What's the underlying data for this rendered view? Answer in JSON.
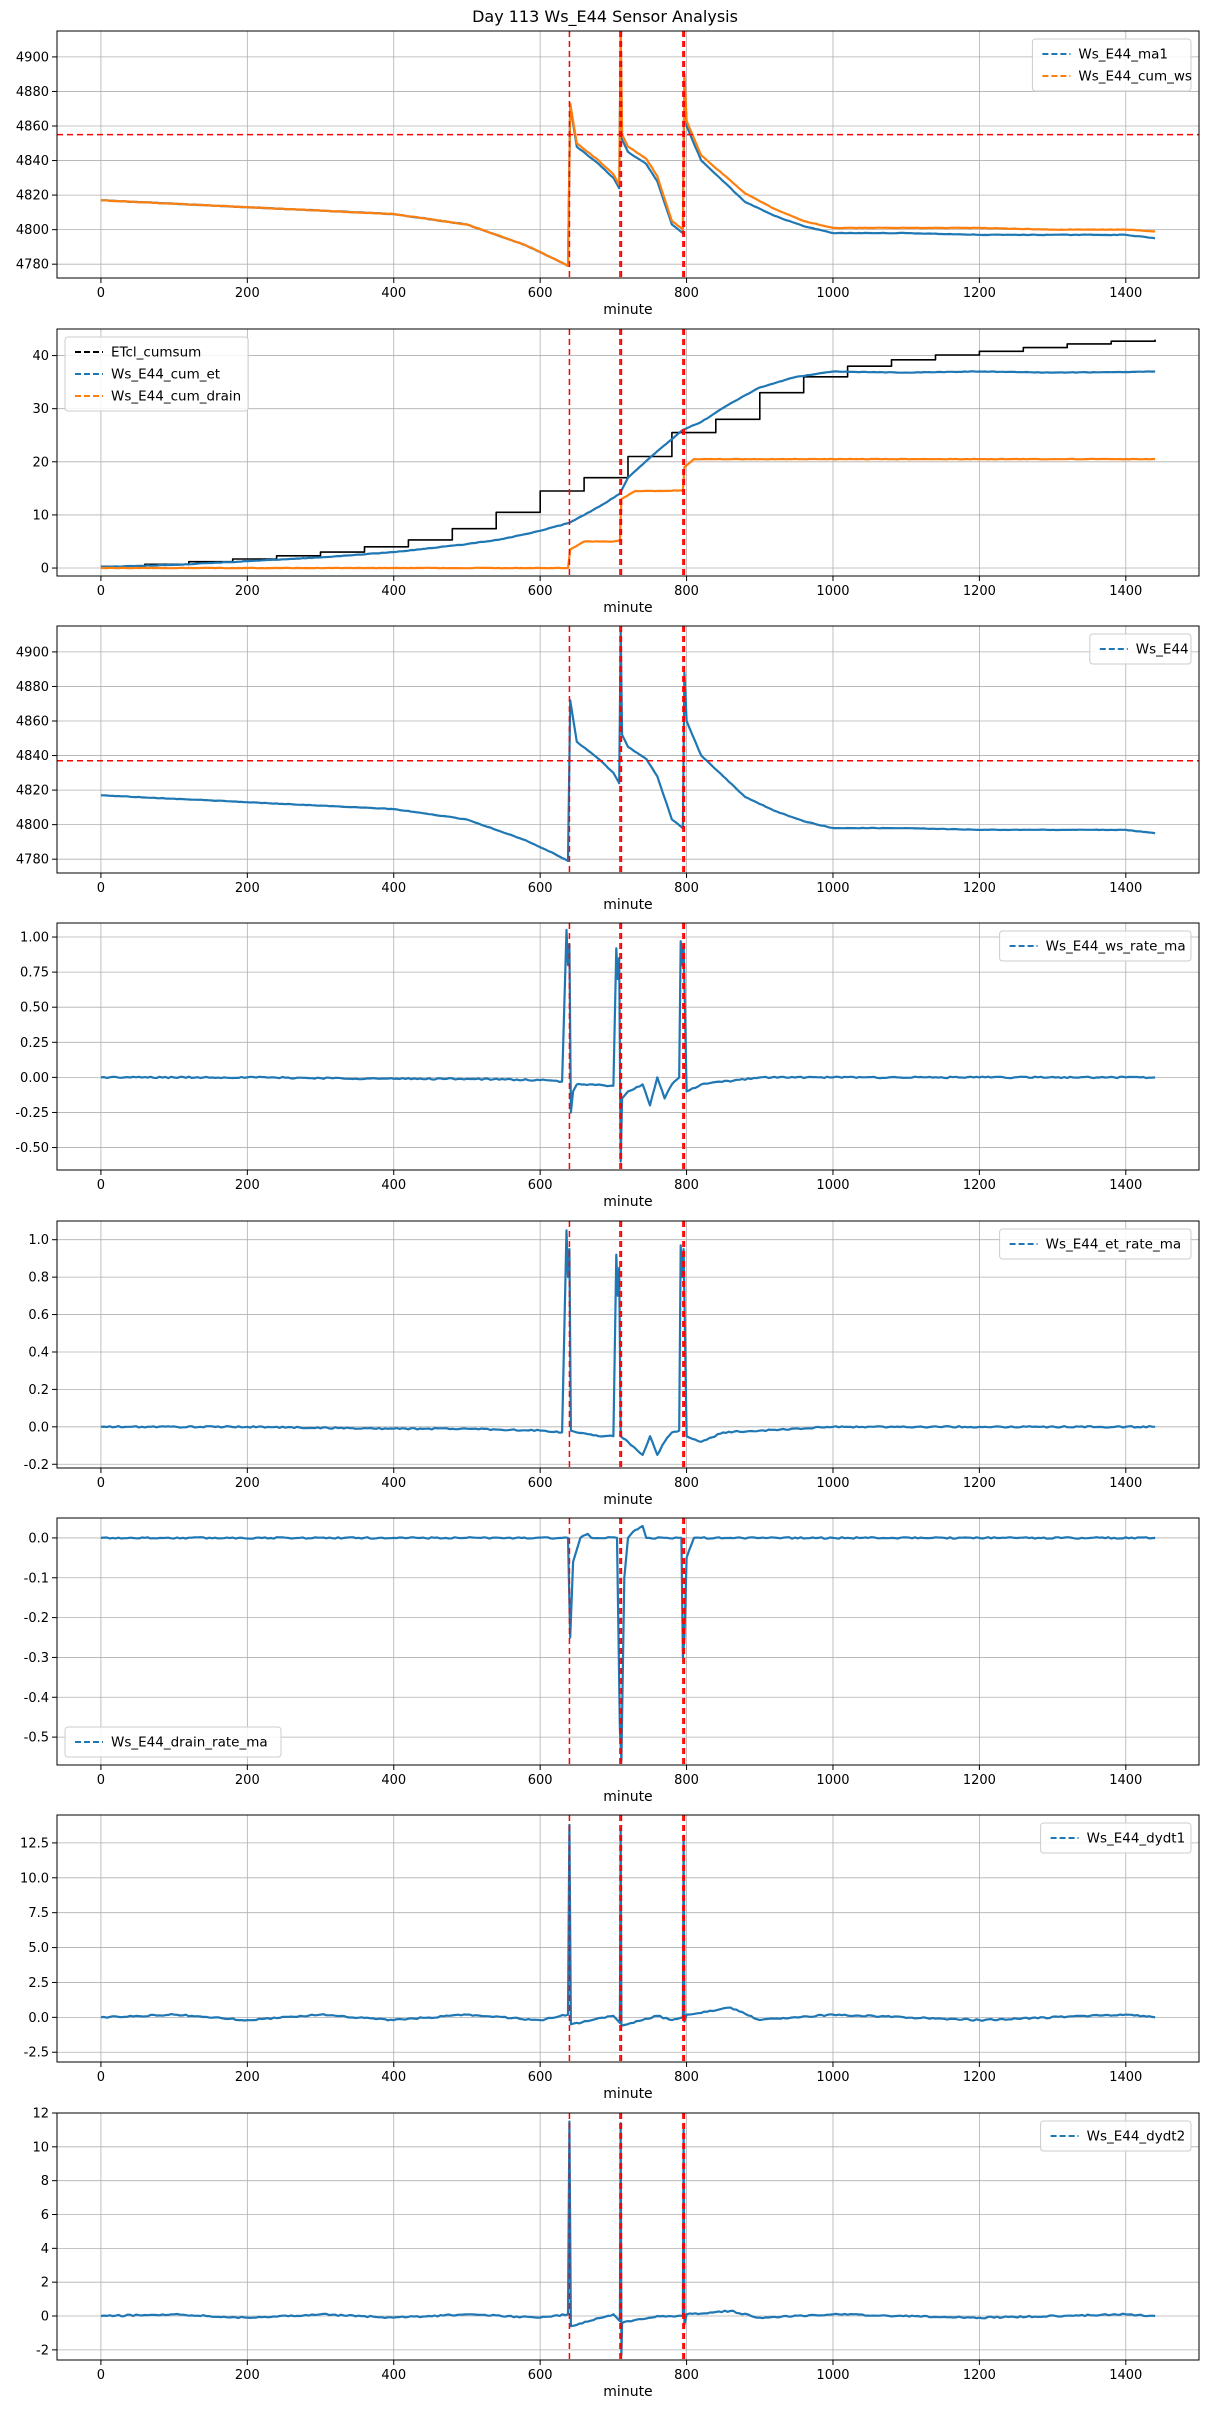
{
  "figure": {
    "title": "Day 113 Ws_E44 Sensor Analysis"
  },
  "chart_data": [
    {
      "type": "line",
      "xlabel": "minute",
      "xlim": [
        -60,
        1500
      ],
      "ylim": [
        4772,
        4915
      ],
      "xticks": [
        0,
        200,
        400,
        600,
        800,
        1000,
        1200,
        1400
      ],
      "yticks": [
        4780,
        4800,
        4820,
        4840,
        4860,
        4880,
        4900
      ],
      "tick_labels_y": [
        "4780",
        "4800",
        "4820",
        "4840",
        "4860",
        "4880",
        "4900"
      ],
      "tick_labels_x": [
        "0",
        "200",
        "400",
        "600",
        "800",
        "1000",
        "1200",
        "1400"
      ],
      "legend_loc": "top-right",
      "hlines": [
        {
          "y": 4855,
          "color": "#ff0000"
        }
      ],
      "vlines": [
        640,
        709,
        711,
        795,
        797
      ],
      "series": [
        {
          "name": "Ws_E44_ma1",
          "color": "#1f77b4",
          "x": [
            0,
            100,
            200,
            300,
            400,
            500,
            580,
            620,
            638,
            641,
            650,
            680,
            700,
            708,
            710,
            712,
            720,
            745,
            760,
            780,
            795,
            797,
            800,
            820,
            850,
            880,
            920,
            960,
            1000,
            1100,
            1200,
            1300,
            1400,
            1440
          ],
          "y": [
            4817,
            4815,
            4813,
            4811,
            4809,
            4803,
            4791,
            4783,
            4779,
            4872,
            4848,
            4838,
            4830,
            4824,
            4912,
            4852,
            4845,
            4838,
            4828,
            4803,
            4798,
            4888,
            4860,
            4840,
            4828,
            4816,
            4808,
            4802,
            4798,
            4798,
            4797,
            4797,
            4797,
            4795
          ]
        },
        {
          "name": "Ws_E44_cum_ws",
          "color": "#ff7f0e",
          "x": [
            0,
            100,
            200,
            300,
            400,
            500,
            580,
            620,
            638,
            641,
            650,
            680,
            700,
            708,
            710,
            712,
            720,
            745,
            760,
            780,
            795,
            797,
            800,
            820,
            850,
            880,
            920,
            960,
            1000,
            1100,
            1200,
            1300,
            1400,
            1440
          ],
          "y": [
            4817,
            4815,
            4813,
            4811,
            4809,
            4803,
            4791,
            4783,
            4779,
            4873,
            4850,
            4840,
            4832,
            4826,
            4914,
            4855,
            4848,
            4841,
            4831,
            4805,
            4800,
            4890,
            4863,
            4843,
            4832,
            4821,
            4812,
            4805,
            4801,
            4801,
            4801,
            4800,
            4800,
            4799
          ]
        }
      ]
    },
    {
      "type": "line",
      "xlabel": "minute",
      "xlim": [
        -60,
        1500
      ],
      "ylim": [
        -1.5,
        45
      ],
      "xticks": [
        0,
        200,
        400,
        600,
        800,
        1000,
        1200,
        1400
      ],
      "yticks": [
        0,
        10,
        20,
        30,
        40
      ],
      "tick_labels_y": [
        "0",
        "10",
        "20",
        "30",
        "40"
      ],
      "tick_labels_x": [
        "0",
        "200",
        "400",
        "600",
        "800",
        "1000",
        "1200",
        "1400"
      ],
      "legend_loc": "top-left",
      "hlines": [],
      "vlines": [
        640,
        709,
        711,
        795,
        797
      ],
      "series": [
        {
          "name": "ETcl_cumsum",
          "color": "#000000",
          "step": true,
          "x": [
            0,
            60,
            120,
            180,
            240,
            300,
            360,
            420,
            480,
            540,
            600,
            660,
            720,
            780,
            840,
            900,
            960,
            1020,
            1080,
            1140,
            1200,
            1260,
            1320,
            1380,
            1440
          ],
          "y": [
            0.3,
            0.7,
            1.2,
            1.7,
            2.3,
            3.0,
            4.0,
            5.3,
            7.4,
            10.5,
            14.5,
            17.0,
            21.0,
            25.5,
            28.0,
            33.0,
            36.0,
            38.0,
            39.2,
            40.1,
            40.8,
            41.5,
            42.2,
            42.7,
            43.0
          ]
        },
        {
          "name": "Ws_E44_cum_et",
          "color": "#1f77b4",
          "x": [
            0,
            100,
            200,
            300,
            400,
            500,
            550,
            600,
            640,
            680,
            709,
            720,
            760,
            795,
            820,
            860,
            900,
            950,
            1000,
            1100,
            1200,
            1300,
            1400,
            1440
          ],
          "y": [
            0.2,
            0.6,
            1.3,
            2.0,
            3.0,
            4.5,
            5.5,
            7.0,
            8.5,
            11.5,
            14.0,
            17.0,
            22.0,
            26.0,
            27.5,
            31.0,
            34.0,
            36.0,
            37.0,
            36.8,
            37.0,
            36.8,
            36.9,
            37.0
          ]
        },
        {
          "name": "Ws_E44_cum_drain",
          "color": "#ff7f0e",
          "x": [
            0,
            400,
            638,
            641,
            660,
            700,
            709,
            711,
            730,
            760,
            795,
            797,
            810,
            900,
            1000,
            1200,
            1440
          ],
          "y": [
            0,
            0,
            0,
            3.5,
            5.0,
            5.0,
            5.2,
            13.0,
            14.5,
            14.5,
            14.6,
            19.0,
            20.5,
            20.5,
            20.5,
            20.5,
            20.5
          ]
        }
      ]
    },
    {
      "type": "line",
      "xlabel": "minute",
      "xlim": [
        -60,
        1500
      ],
      "ylim": [
        4772,
        4915
      ],
      "xticks": [
        0,
        200,
        400,
        600,
        800,
        1000,
        1200,
        1400
      ],
      "yticks": [
        4780,
        4800,
        4820,
        4840,
        4860,
        4880,
        4900
      ],
      "tick_labels_y": [
        "4780",
        "4800",
        "4820",
        "4840",
        "4860",
        "4880",
        "4900"
      ],
      "tick_labels_x": [
        "0",
        "200",
        "400",
        "600",
        "800",
        "1000",
        "1200",
        "1400"
      ],
      "legend_loc": "top-right",
      "hlines": [
        {
          "y": 4837,
          "color": "#ff0000"
        }
      ],
      "vlines": [
        640,
        709,
        711,
        795,
        797
      ],
      "series": [
        {
          "name": "Ws_E44",
          "color": "#1f77b4",
          "x": [
            0,
            100,
            200,
            300,
            400,
            500,
            580,
            620,
            638,
            641,
            650,
            680,
            700,
            708,
            710,
            712,
            720,
            745,
            760,
            780,
            795,
            797,
            800,
            820,
            850,
            880,
            920,
            960,
            1000,
            1100,
            1200,
            1300,
            1400,
            1440
          ],
          "y": [
            4817,
            4815,
            4813,
            4811,
            4809,
            4803,
            4791,
            4783,
            4779,
            4872,
            4848,
            4838,
            4830,
            4824,
            4912,
            4852,
            4845,
            4838,
            4828,
            4803,
            4798,
            4888,
            4860,
            4840,
            4828,
            4816,
            4808,
            4802,
            4798,
            4798,
            4797,
            4797,
            4797,
            4795
          ]
        }
      ]
    },
    {
      "type": "line",
      "xlabel": "minute",
      "xlim": [
        -60,
        1500
      ],
      "ylim": [
        -0.66,
        1.1
      ],
      "xticks": [
        0,
        200,
        400,
        600,
        800,
        1000,
        1200,
        1400
      ],
      "yticks": [
        -0.5,
        -0.25,
        0.0,
        0.25,
        0.5,
        0.75,
        1.0
      ],
      "tick_labels_y": [
        "-0.50",
        "-0.25",
        "0.00",
        "0.25",
        "0.50",
        "0.75",
        "1.00"
      ],
      "tick_labels_x": [
        "0",
        "200",
        "400",
        "600",
        "800",
        "1000",
        "1200",
        "1400"
      ],
      "legend_loc": "top-right",
      "hlines": [],
      "vlines": [
        640,
        709,
        711,
        795,
        797
      ],
      "series": [
        {
          "name": "Ws_E44_ws_rate_ma",
          "color": "#1f77b4",
          "x": [
            0,
            200,
            400,
            500,
            600,
            630,
            636,
            638,
            640,
            642,
            645,
            650,
            660,
            700,
            704,
            706,
            708,
            710,
            712,
            720,
            740,
            750,
            760,
            770,
            780,
            790,
            792,
            794,
            796,
            800,
            820,
            900,
            1000,
            1200,
            1400,
            1440
          ],
          "y": [
            0,
            0,
            -0.01,
            -0.01,
            -0.02,
            -0.03,
            1.05,
            0.8,
            0.95,
            -0.25,
            -0.1,
            -0.05,
            -0.05,
            -0.06,
            0.92,
            0.7,
            0.85,
            -0.6,
            -0.15,
            -0.1,
            -0.05,
            -0.2,
            0.0,
            -0.15,
            -0.05,
            0.0,
            0.97,
            0.8,
            0.95,
            -0.1,
            -0.05,
            0.0,
            0.0,
            0.0,
            0.0,
            0.0
          ]
        }
      ]
    },
    {
      "type": "line",
      "xlabel": "minute",
      "xlim": [
        -60,
        1500
      ],
      "ylim": [
        -0.22,
        1.1
      ],
      "xticks": [
        0,
        200,
        400,
        600,
        800,
        1000,
        1200,
        1400
      ],
      "yticks": [
        -0.2,
        0.0,
        0.2,
        0.4,
        0.6,
        0.8,
        1.0
      ],
      "tick_labels_y": [
        "-0.2",
        "0.0",
        "0.2",
        "0.4",
        "0.6",
        "0.8",
        "1.0"
      ],
      "tick_labels_x": [
        "0",
        "200",
        "400",
        "600",
        "800",
        "1000",
        "1200",
        "1400"
      ],
      "legend_loc": "top-right",
      "hlines": [],
      "vlines": [
        640,
        709,
        711,
        795,
        797
      ],
      "series": [
        {
          "name": "Ws_E44_et_rate_ma",
          "color": "#1f77b4",
          "x": [
            0,
            200,
            400,
            500,
            600,
            630,
            636,
            638,
            640,
            642,
            650,
            680,
            700,
            704,
            706,
            708,
            710,
            720,
            740,
            750,
            760,
            770,
            780,
            790,
            792,
            794,
            796,
            800,
            820,
            850,
            900,
            1000,
            1200,
            1400,
            1440
          ],
          "y": [
            0,
            0,
            -0.01,
            -0.01,
            -0.02,
            -0.03,
            1.05,
            0.8,
            0.95,
            -0.02,
            -0.03,
            -0.05,
            -0.05,
            0.92,
            0.7,
            0.85,
            -0.05,
            -0.08,
            -0.15,
            -0.05,
            -0.15,
            -0.08,
            -0.03,
            -0.02,
            0.97,
            0.8,
            0.95,
            -0.05,
            -0.08,
            -0.03,
            -0.02,
            0.0,
            0.0,
            0.0,
            0.0
          ]
        }
      ]
    },
    {
      "type": "line",
      "xlabel": "minute",
      "xlim": [
        -60,
        1500
      ],
      "ylim": [
        -0.57,
        0.05
      ],
      "xticks": [
        0,
        200,
        400,
        600,
        800,
        1000,
        1200,
        1400
      ],
      "yticks": [
        -0.5,
        -0.4,
        -0.3,
        -0.2,
        -0.1,
        0.0
      ],
      "tick_labels_y": [
        "-0.5",
        "-0.4",
        "-0.3",
        "-0.2",
        "-0.1",
        "0.0"
      ],
      "tick_labels_x": [
        "0",
        "200",
        "400",
        "600",
        "800",
        "1000",
        "1200",
        "1400"
      ],
      "legend_loc": "bottom-left",
      "hlines": [],
      "vlines": [
        640,
        709,
        711,
        795,
        797
      ],
      "series": [
        {
          "name": "Ws_E44_drain_rate_ma",
          "color": "#1f77b4",
          "x": [
            0,
            400,
            638,
            641,
            645,
            655,
            665,
            670,
            705,
            709,
            711,
            715,
            720,
            730,
            740,
            745,
            793,
            795,
            797,
            800,
            810,
            820,
            1000,
            1200,
            1440
          ],
          "y": [
            0,
            0,
            0,
            -0.25,
            -0.06,
            0.0,
            0.01,
            0.0,
            0.0,
            -0.48,
            -0.56,
            -0.1,
            0.0,
            0.02,
            0.03,
            0.0,
            0.0,
            -0.3,
            -0.25,
            -0.05,
            0.0,
            0.0,
            0.0,
            0.0,
            0.0
          ]
        }
      ]
    },
    {
      "type": "line",
      "xlabel": "minute",
      "xlim": [
        -60,
        1500
      ],
      "ylim": [
        -3.2,
        14.5
      ],
      "xticks": [
        0,
        200,
        400,
        600,
        800,
        1000,
        1200,
        1400
      ],
      "yticks": [
        -2.5,
        0.0,
        2.5,
        5.0,
        7.5,
        10.0,
        12.5
      ],
      "tick_labels_y": [
        "-2.5",
        "0.0",
        "2.5",
        "5.0",
        "7.5",
        "10.0",
        "12.5"
      ],
      "tick_labels_x": [
        "0",
        "200",
        "400",
        "600",
        "800",
        "1000",
        "1200",
        "1400"
      ],
      "legend_loc": "top-right",
      "hlines": [],
      "vlines": [
        640,
        709,
        711,
        795,
        797
      ],
      "series": [
        {
          "name": "Ws_E44_dydt1",
          "color": "#1f77b4",
          "x": [
            0,
            100,
            200,
            300,
            400,
            500,
            600,
            638,
            640,
            642,
            700,
            709,
            710,
            711,
            760,
            780,
            795,
            796,
            797,
            800,
            860,
            900,
            1000,
            1200,
            1400,
            1440
          ],
          "y": [
            0,
            0.2,
            -0.2,
            0.2,
            -0.2,
            0.2,
            -0.2,
            0.2,
            13.8,
            -0.5,
            0.1,
            -0.4,
            13.5,
            -0.6,
            0.1,
            -0.2,
            0.0,
            13.0,
            -0.3,
            0.2,
            0.7,
            -0.2,
            0.2,
            -0.2,
            0.2,
            0.0
          ]
        }
      ]
    },
    {
      "type": "line",
      "xlabel": "minute",
      "xlim": [
        -60,
        1500
      ],
      "ylim": [
        -2.6,
        12
      ],
      "xticks": [
        0,
        200,
        400,
        600,
        800,
        1000,
        1200,
        1400
      ],
      "yticks": [
        -2,
        0,
        2,
        4,
        6,
        8,
        10,
        12
      ],
      "tick_labels_y": [
        "-2",
        "0",
        "2",
        "4",
        "6",
        "8",
        "10",
        "12"
      ],
      "tick_labels_x": [
        "0",
        "200",
        "400",
        "600",
        "800",
        "1000",
        "1200",
        "1400"
      ],
      "legend_loc": "top-right",
      "hlines": [],
      "vlines": [
        640,
        709,
        711,
        795,
        797
      ],
      "series": [
        {
          "name": "Ws_E44_dydt2",
          "color": "#1f77b4",
          "x": [
            0,
            100,
            200,
            300,
            400,
            500,
            600,
            638,
            640,
            642,
            700,
            709,
            710,
            711,
            712,
            760,
            795,
            796,
            797,
            800,
            860,
            900,
            1000,
            1200,
            1400,
            1440
          ],
          "y": [
            0,
            0.1,
            -0.1,
            0.1,
            -0.1,
            0.1,
            -0.1,
            0.1,
            11.5,
            -0.6,
            0.1,
            -0.3,
            11.4,
            -2.3,
            -0.4,
            0.0,
            0.0,
            11.0,
            -0.5,
            0.1,
            0.3,
            -0.1,
            0.1,
            -0.1,
            0.1,
            0.0
          ]
        }
      ]
    }
  ]
}
